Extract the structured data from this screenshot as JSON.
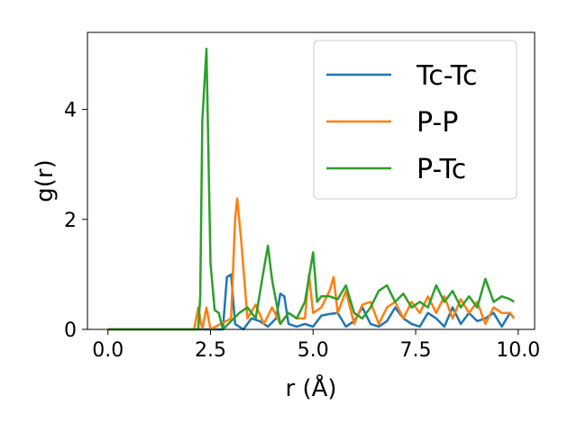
{
  "chart_data": {
    "type": "line",
    "title": "",
    "xlabel": "r (Å)",
    "ylabel": "g(r)",
    "xlim": [
      -0.5,
      10.4
    ],
    "ylim": [
      0,
      5.4
    ],
    "xticks": [
      0.0,
      2.5,
      5.0,
      7.5,
      10.0
    ],
    "xtick_labels": [
      "0.0",
      "2.5",
      "5.0",
      "7.5",
      "10.0"
    ],
    "yticks": [
      0,
      2,
      4
    ],
    "ytick_labels": [
      "0",
      "2",
      "4"
    ],
    "grid": false,
    "legend_position": "top-right",
    "series": [
      {
        "name": "Tc-Tc",
        "color": "#1f77b4",
        "points": [
          [
            0.0,
            0
          ],
          [
            0.5,
            0
          ],
          [
            1.0,
            0
          ],
          [
            1.5,
            0
          ],
          [
            2.0,
            0
          ],
          [
            2.5,
            0
          ],
          [
            2.8,
            0
          ],
          [
            2.9,
            0.95
          ],
          [
            3.0,
            1.0
          ],
          [
            3.1,
            0.1
          ],
          [
            3.3,
            0
          ],
          [
            3.5,
            0.2
          ],
          [
            3.7,
            0.15
          ],
          [
            3.9,
            0.05
          ],
          [
            4.1,
            0.2
          ],
          [
            4.2,
            0.65
          ],
          [
            4.3,
            0.6
          ],
          [
            4.4,
            0.1
          ],
          [
            4.6,
            0.05
          ],
          [
            4.8,
            0.1
          ],
          [
            5.0,
            0.05
          ],
          [
            5.2,
            0.25
          ],
          [
            5.4,
            0.28
          ],
          [
            5.6,
            0.3
          ],
          [
            5.8,
            0.05
          ],
          [
            6.0,
            0.15
          ],
          [
            6.2,
            0.4
          ],
          [
            6.4,
            0.1
          ],
          [
            6.6,
            0.05
          ],
          [
            6.8,
            0.15
          ],
          [
            7.0,
            0.4
          ],
          [
            7.2,
            0.2
          ],
          [
            7.4,
            0.1
          ],
          [
            7.6,
            0.05
          ],
          [
            7.8,
            0.3
          ],
          [
            8.0,
            0.2
          ],
          [
            8.2,
            0.05
          ],
          [
            8.4,
            0.4
          ],
          [
            8.6,
            0.1
          ],
          [
            8.8,
            0.3
          ],
          [
            9.0,
            0.15
          ],
          [
            9.2,
            0.2
          ],
          [
            9.4,
            0.3
          ],
          [
            9.6,
            0.05
          ],
          [
            9.8,
            0.3
          ],
          [
            9.9,
            0.2
          ]
        ]
      },
      {
        "name": "P-P",
        "color": "#ff7f0e",
        "points": [
          [
            0.0,
            0
          ],
          [
            0.5,
            0
          ],
          [
            1.0,
            0
          ],
          [
            1.5,
            0
          ],
          [
            2.0,
            0
          ],
          [
            2.1,
            0
          ],
          [
            2.2,
            0.4
          ],
          [
            2.3,
            0
          ],
          [
            2.4,
            0.4
          ],
          [
            2.5,
            0
          ],
          [
            3.0,
            0.2
          ],
          [
            3.1,
            2.0
          ],
          [
            3.15,
            2.38
          ],
          [
            3.25,
            1.6
          ],
          [
            3.4,
            0.2
          ],
          [
            3.6,
            0.45
          ],
          [
            3.8,
            0.1
          ],
          [
            4.0,
            0.4
          ],
          [
            4.2,
            0.1
          ],
          [
            4.4,
            0.3
          ],
          [
            4.6,
            0.2
          ],
          [
            4.8,
            0.2
          ],
          [
            4.9,
            1.0
          ],
          [
            5.0,
            0.3
          ],
          [
            5.2,
            0.4
          ],
          [
            5.4,
            0.7
          ],
          [
            5.5,
            0.95
          ],
          [
            5.6,
            0.3
          ],
          [
            5.8,
            0.7
          ],
          [
            6.0,
            0.1
          ],
          [
            6.2,
            0.45
          ],
          [
            6.4,
            0.5
          ],
          [
            6.6,
            0.1
          ],
          [
            6.8,
            0.4
          ],
          [
            7.0,
            0.5
          ],
          [
            7.2,
            0.2
          ],
          [
            7.4,
            0.5
          ],
          [
            7.6,
            0.3
          ],
          [
            7.8,
            0.6
          ],
          [
            8.0,
            0.3
          ],
          [
            8.2,
            0.6
          ],
          [
            8.4,
            0.2
          ],
          [
            8.6,
            0.55
          ],
          [
            8.8,
            0.3
          ],
          [
            9.0,
            0.5
          ],
          [
            9.2,
            0.1
          ],
          [
            9.4,
            0.4
          ],
          [
            9.6,
            0.3
          ],
          [
            9.8,
            0.3
          ],
          [
            9.9,
            0.2
          ]
        ]
      },
      {
        "name": "P-Tc",
        "color": "#2ca02c",
        "points": [
          [
            0.0,
            0
          ],
          [
            0.5,
            0
          ],
          [
            1.0,
            0
          ],
          [
            1.5,
            0
          ],
          [
            2.0,
            0
          ],
          [
            2.2,
            0
          ],
          [
            2.25,
            0.6
          ],
          [
            2.3,
            3.8
          ],
          [
            2.4,
            5.1
          ],
          [
            2.5,
            1.2
          ],
          [
            2.6,
            0.35
          ],
          [
            2.7,
            0.3
          ],
          [
            2.8,
            0
          ],
          [
            3.2,
            0.3
          ],
          [
            3.4,
            0.4
          ],
          [
            3.6,
            0.2
          ],
          [
            3.8,
            1.1
          ],
          [
            3.9,
            1.52
          ],
          [
            4.0,
            0.9
          ],
          [
            4.2,
            0.1
          ],
          [
            4.4,
            0.3
          ],
          [
            4.6,
            0.2
          ],
          [
            4.8,
            0.5
          ],
          [
            5.0,
            1.4
          ],
          [
            5.1,
            0.5
          ],
          [
            5.2,
            0.6
          ],
          [
            5.4,
            0.6
          ],
          [
            5.6,
            0.55
          ],
          [
            5.8,
            0.8
          ],
          [
            6.0,
            0.3
          ],
          [
            6.2,
            0.2
          ],
          [
            6.4,
            0.4
          ],
          [
            6.6,
            0.7
          ],
          [
            6.8,
            0.8
          ],
          [
            7.0,
            0.5
          ],
          [
            7.2,
            0.65
          ],
          [
            7.4,
            0.4
          ],
          [
            7.6,
            0.5
          ],
          [
            7.8,
            0.4
          ],
          [
            8.0,
            0.8
          ],
          [
            8.2,
            0.5
          ],
          [
            8.4,
            0.7
          ],
          [
            8.6,
            0.4
          ],
          [
            8.8,
            0.6
          ],
          [
            9.0,
            0.4
          ],
          [
            9.2,
            0.92
          ],
          [
            9.4,
            0.5
          ],
          [
            9.6,
            0.6
          ],
          [
            9.8,
            0.55
          ],
          [
            9.9,
            0.5
          ]
        ]
      }
    ]
  }
}
